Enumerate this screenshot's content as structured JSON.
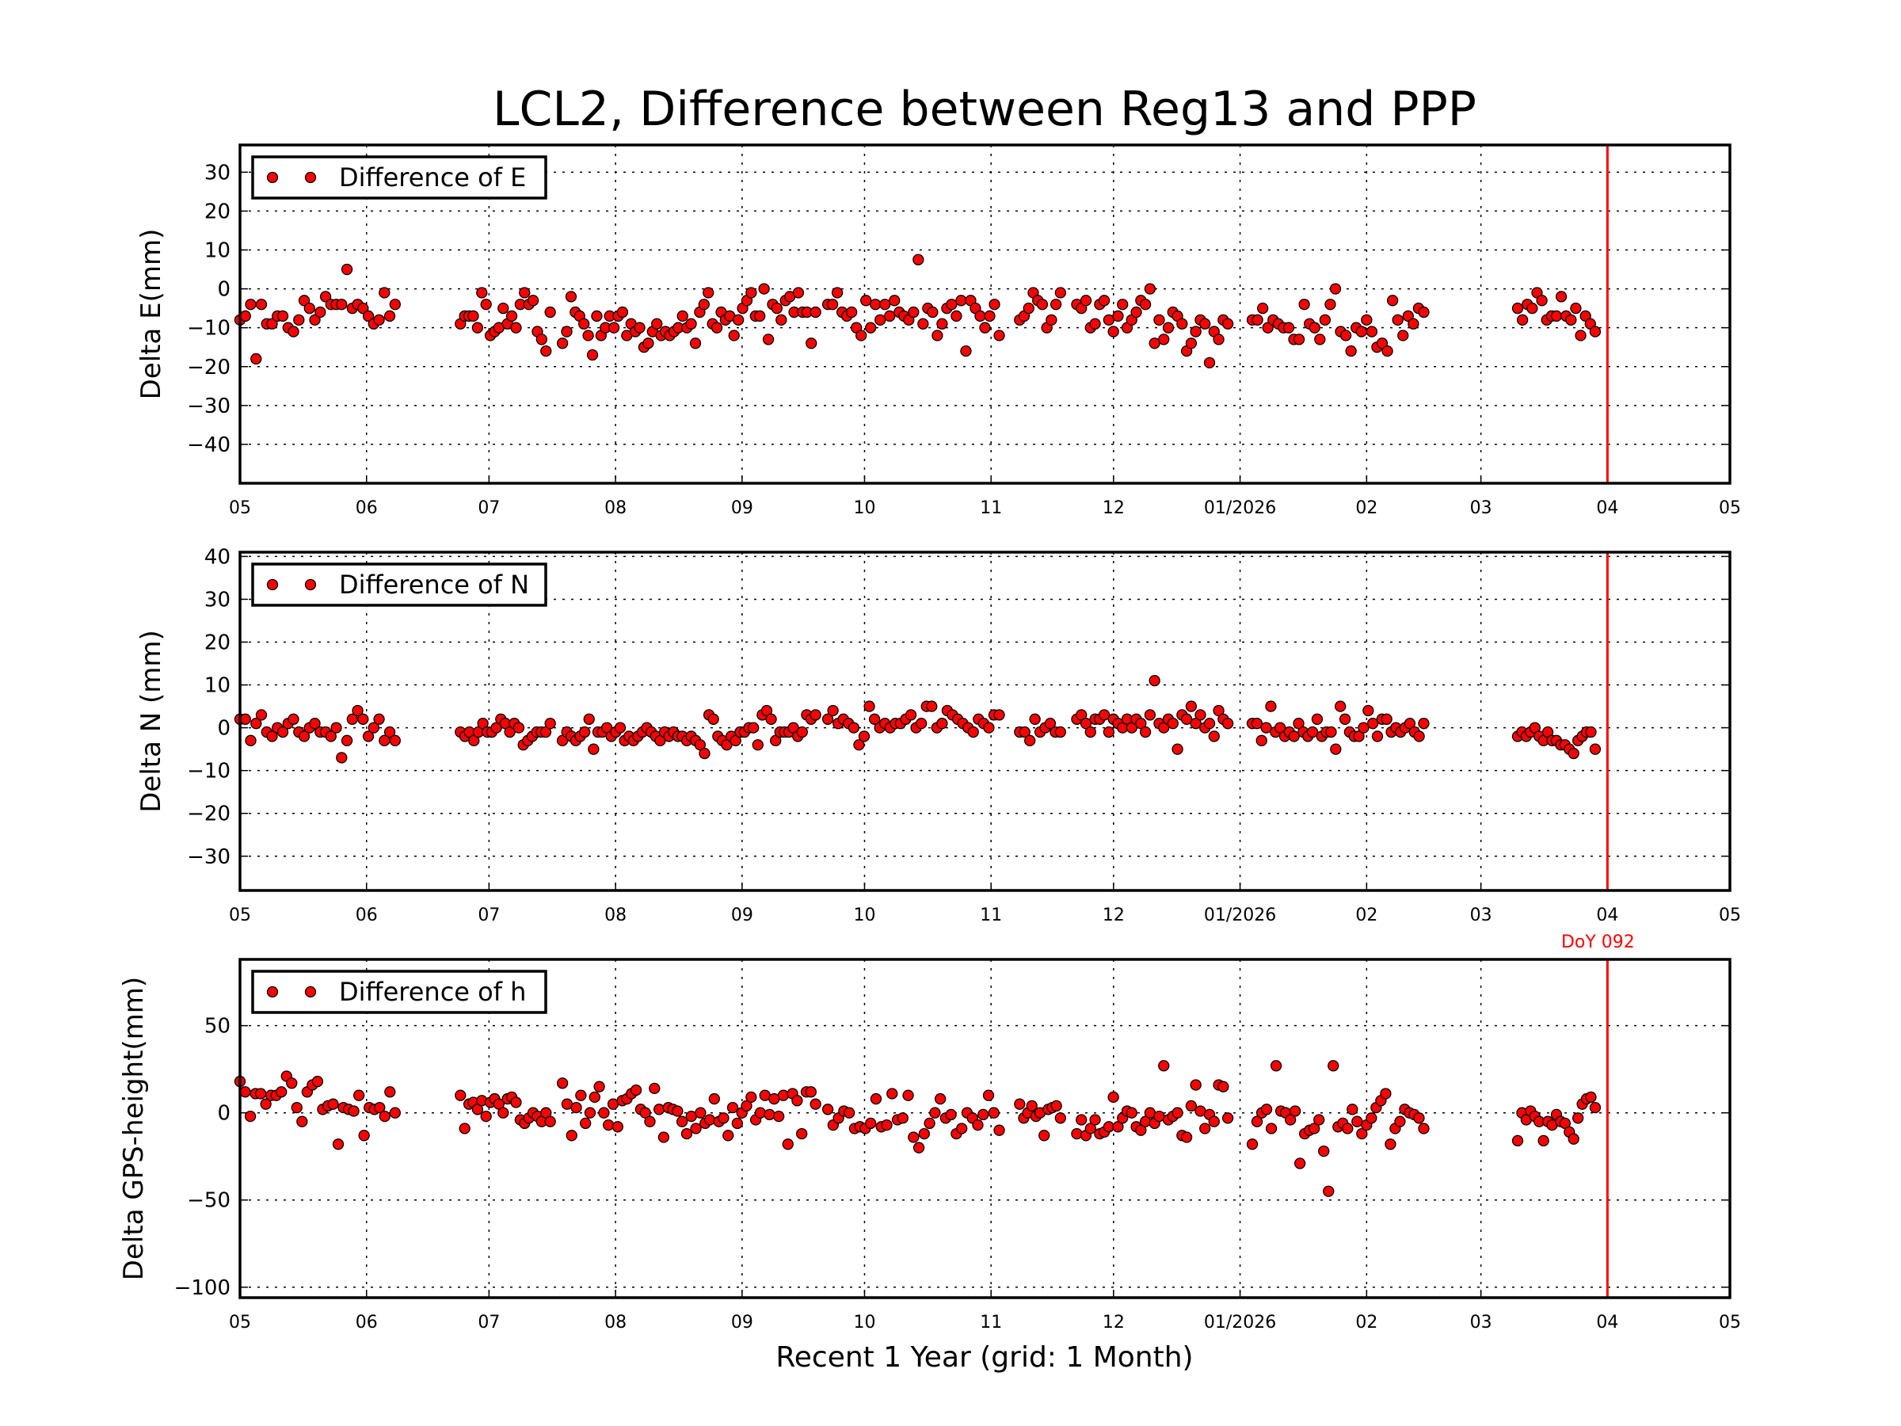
{
  "chart_data": {
    "title": "LCL2, Difference between Reg13 and PPP",
    "xlabel": "Recent 1 Year (grid: 1 Month)",
    "xlim": [
      "2025-05-01",
      "2026-05-01"
    ],
    "x_ticks": [
      {
        "date": "2025-05-01",
        "label": "05"
      },
      {
        "date": "2025-06-01",
        "label": "06"
      },
      {
        "date": "2025-07-01",
        "label": "07"
      },
      {
        "date": "2025-08-01",
        "label": "08"
      },
      {
        "date": "2025-09-01",
        "label": "09"
      },
      {
        "date": "2025-10-01",
        "label": "10"
      },
      {
        "date": "2025-11-01",
        "label": "11"
      },
      {
        "date": "2025-12-01",
        "label": "12"
      },
      {
        "date": "2026-01-01",
        "label": "01/2026"
      },
      {
        "date": "2026-02-01",
        "label": "02"
      },
      {
        "date": "2026-03-01",
        "label": "03"
      },
      {
        "date": "2026-04-01",
        "label": "04"
      },
      {
        "date": "2026-05-01",
        "label": "05"
      }
    ],
    "grid": true,
    "marker_color": "#ff0000",
    "marker_edge_color": "#000000",
    "reference_line": {
      "date": "2026-04-01",
      "color": "#ff0000",
      "label": "DoY 092"
    },
    "panels": [
      {
        "type": "scatter",
        "ylabel": "Delta E(mm)",
        "legend": "Difference of E",
        "legend_position": "top-left",
        "ylim": [
          -50,
          37
        ],
        "yticks": [
          30,
          20,
          10,
          0,
          -10,
          -20,
          -30,
          -40
        ],
        "segments": [
          {
            "start": "2025-05-01",
            "end": "2025-06-08",
            "values": [
              -8,
              -7,
              -4,
              -18,
              -4,
              -9,
              -9,
              -7,
              -7,
              -10,
              -11,
              -8,
              -3,
              -5,
              -8,
              -6,
              -2,
              -4,
              -4,
              -4,
              5,
              -5,
              -4,
              -5,
              -7,
              -9,
              -8,
              -1,
              -7,
              -4
            ]
          },
          {
            "start": "2025-06-24",
            "end": "2025-07-16",
            "values": [
              -9,
              -7,
              -7,
              -7,
              -10,
              -1,
              -4,
              -12,
              -11,
              -10,
              -5,
              -9,
              -7,
              -10,
              -4,
              -1,
              -4,
              -3,
              -11,
              -13,
              -16,
              -6
            ]
          },
          {
            "start": "2025-07-19",
            "end": "2025-09-19",
            "values": [
              -14,
              -11,
              -2,
              -6,
              -7,
              -9,
              -12,
              -17,
              -7,
              -12,
              -10,
              -7,
              -10,
              -7,
              -6,
              -12,
              -9,
              -11,
              -10,
              -15,
              -14,
              -11,
              -9,
              -12,
              -11,
              -12,
              -11,
              -10,
              -7,
              -10,
              -9,
              -14,
              -6,
              -4,
              -1,
              -9,
              -10,
              -6,
              -8,
              -7,
              -12,
              -8,
              -5,
              -3,
              -1,
              -7,
              -7,
              0,
              -13,
              -4,
              -5,
              -8,
              -3,
              -2,
              -6,
              -1,
              -6,
              -6,
              -14,
              -6
            ]
          },
          {
            "start": "2025-09-22",
            "end": "2025-11-03",
            "values": [
              -4,
              -4,
              -1,
              -6,
              -7,
              -6,
              -10,
              -12,
              -3,
              -10,
              -4,
              -8,
              -4,
              -7,
              -3,
              -6,
              -7,
              -8,
              -6,
              7.5,
              -9,
              -5,
              -6,
              -12,
              -9,
              -5,
              -4,
              -7,
              -3,
              -16,
              -3,
              -5,
              -7,
              -10,
              -7,
              -4,
              -12
            ]
          },
          {
            "start": "2025-11-08",
            "end": "2025-11-18",
            "values": [
              -8,
              -7,
              -5,
              -1,
              -3,
              -4,
              -10,
              -8,
              -4,
              -1
            ]
          },
          {
            "start": "2025-11-22",
            "end": "2025-12-29",
            "values": [
              -4,
              -5,
              -3,
              -10,
              -9,
              -4,
              -3,
              -8,
              -11,
              -7,
              -4,
              -10,
              -8,
              -6,
              -3,
              -4,
              0,
              -14,
              -8,
              -13,
              -10,
              -6,
              -7,
              -9,
              -16,
              -14,
              -11,
              -8,
              -9,
              -19,
              -11,
              -13,
              -8,
              -9
            ]
          },
          {
            "start": "2026-01-04",
            "end": "2026-02-15",
            "values": [
              -8,
              -8,
              -5,
              -10,
              -8,
              -9,
              -10,
              -10,
              -13,
              -13,
              -4,
              -9,
              -10,
              -13,
              -8,
              -4,
              0,
              -11,
              -12,
              -16,
              -10,
              -11,
              -8,
              -11,
              -15,
              -14,
              -16,
              -3,
              -8,
              -12,
              -7,
              -9,
              -5,
              -6
            ]
          },
          {
            "start": "2026-03-10",
            "end": "2026-03-29",
            "values": [
              -5,
              -8,
              -4,
              -5,
              -1,
              -3,
              -8,
              -7,
              -7,
              -2,
              -7,
              -8,
              -5,
              -12,
              -7,
              -9,
              -11
            ]
          }
        ]
      },
      {
        "type": "scatter",
        "ylabel": "Delta N (mm)",
        "legend": "Difference of N",
        "legend_position": "top-left",
        "ylim": [
          -38,
          41
        ],
        "yticks": [
          40,
          30,
          20,
          10,
          0,
          -10,
          -20,
          -30
        ],
        "segments": [
          {
            "start": "2025-05-01",
            "end": "2025-06-08",
            "values": [
              2,
              2,
              -3,
              1,
              3,
              -1,
              -2,
              0,
              -1,
              1,
              2,
              -1,
              -2,
              0,
              1,
              -1,
              -1,
              -2,
              0,
              -7,
              -3,
              2,
              4,
              2,
              -2,
              0,
              2,
              -3,
              -1,
              -3
            ]
          },
          {
            "start": "2025-06-24",
            "end": "2025-07-16",
            "values": [
              -1,
              -2,
              -1,
              -3,
              -1,
              1,
              -1,
              -1,
              0,
              2,
              1,
              -1,
              1,
              0,
              -4,
              -3,
              -2,
              -1,
              -1,
              -1,
              1
            ]
          },
          {
            "start": "2025-07-19",
            "end": "2025-09-19",
            "values": [
              -3,
              -1,
              -2,
              -3,
              -2,
              -1,
              2,
              -5,
              -1,
              -1,
              0,
              -2,
              -1,
              0,
              -3,
              -2,
              -3,
              -2,
              -1,
              0,
              -1,
              -2,
              -3,
              -1,
              -2,
              -1,
              -2,
              -2,
              -3,
              -2,
              -3,
              -4,
              -6,
              3,
              2,
              -2,
              -3,
              -4,
              -2,
              -3,
              -1,
              -1,
              0,
              0,
              -4,
              3,
              4,
              2,
              -3,
              -1,
              -1,
              -1,
              0,
              -2,
              -1,
              3,
              2,
              3
            ]
          },
          {
            "start": "2025-09-22",
            "end": "2025-11-03",
            "values": [
              2,
              4,
              1,
              2,
              1,
              0,
              -4,
              -2,
              5,
              2,
              0,
              1,
              0,
              1,
              1,
              2,
              3,
              0,
              1,
              5,
              5,
              0,
              1,
              4,
              3,
              2,
              1,
              0,
              -1,
              2,
              1,
              0,
              3,
              3
            ]
          },
          {
            "start": "2025-11-08",
            "end": "2025-11-18",
            "values": [
              -1,
              -1,
              -3,
              2,
              -1,
              0,
              1,
              -1,
              -1
            ]
          },
          {
            "start": "2025-11-22",
            "end": "2025-12-29",
            "values": [
              2,
              3,
              1,
              -1,
              2,
              2,
              3,
              -1,
              2,
              1,
              0,
              2,
              0,
              2,
              1,
              -1,
              3,
              11,
              1,
              0,
              2,
              1,
              -5,
              3,
              2,
              5,
              1,
              3,
              0,
              1,
              -2,
              4,
              2,
              1
            ]
          },
          {
            "start": "2026-01-04",
            "end": "2026-02-15",
            "values": [
              1,
              1,
              -3,
              0,
              5,
              -1,
              0,
              -2,
              -1,
              -2,
              1,
              -1,
              -2,
              -1,
              2,
              -2,
              -1,
              -1,
              -5,
              5,
              2,
              -1,
              -2,
              -2,
              0,
              4,
              1,
              -2,
              2,
              2,
              -1,
              0,
              -1,
              0,
              1,
              -1,
              -2,
              1
            ]
          },
          {
            "start": "2026-03-10",
            "end": "2026-03-29",
            "values": [
              -2,
              -1,
              -2,
              -1,
              0,
              -2,
              -3,
              -1,
              -3,
              -3,
              -4,
              -4,
              -5,
              -6,
              -3,
              -2,
              -1,
              -1,
              -5
            ]
          }
        ]
      },
      {
        "type": "scatter",
        "ylabel": "Delta GPS-height(mm)",
        "legend": "Difference of h",
        "legend_position": "top-left",
        "ylim": [
          -106,
          88
        ],
        "yticks": [
          50,
          0,
          -50,
          -100
        ],
        "segments": [
          {
            "start": "2025-05-01",
            "end": "2025-06-08",
            "values": [
              18,
              12,
              -2,
              11,
              11,
              5,
              10,
              10,
              12,
              21,
              17,
              3,
              -5,
              12,
              16,
              18,
              2,
              4,
              5,
              -18,
              3,
              2,
              1,
              10,
              -13,
              3,
              2,
              3,
              -2,
              12,
              0
            ]
          },
          {
            "start": "2025-06-24",
            "end": "2025-07-16",
            "values": [
              10,
              -9,
              5,
              6,
              2,
              7,
              -2,
              6,
              8,
              5,
              0,
              8,
              9,
              6,
              -4,
              -6,
              -3,
              0,
              -2,
              -5,
              0,
              -5
            ]
          },
          {
            "start": "2025-07-19",
            "end": "2025-09-19",
            "values": [
              17,
              5,
              -13,
              3,
              10,
              -6,
              0,
              9,
              15,
              0,
              -7,
              5,
              -8,
              7,
              8,
              11,
              13,
              2,
              0,
              -5,
              14,
              2,
              -14,
              3,
              2,
              1,
              -5,
              -12,
              -2,
              -9,
              0,
              -6,
              -4,
              8,
              -5,
              -3,
              -13,
              3,
              -6,
              0,
              4,
              9,
              -4,
              0,
              10,
              -1,
              8,
              -2,
              10,
              -18,
              11,
              7,
              -12,
              12,
              12,
              5
            ]
          },
          {
            "start": "2025-09-22",
            "end": "2025-11-03",
            "values": [
              2,
              -7,
              -3,
              1,
              0,
              -9,
              -8,
              -9,
              -6,
              8,
              -8,
              -7,
              11,
              -4,
              -3,
              10,
              -14,
              -20,
              -12,
              -6,
              0,
              8,
              -3,
              -1,
              -12,
              -9,
              0,
              -3,
              -7,
              -1,
              10,
              0,
              -10
            ]
          },
          {
            "start": "2025-11-08",
            "end": "2025-11-18",
            "values": [
              5,
              -3,
              0,
              4,
              -2,
              0,
              -13,
              2,
              3,
              4,
              -3
            ]
          },
          {
            "start": "2025-11-22",
            "end": "2025-12-29",
            "values": [
              -12,
              -4,
              -13,
              -9,
              -4,
              -12,
              -11,
              -8,
              9,
              -8,
              -3,
              1,
              0,
              -8,
              -10,
              -5,
              0,
              -6,
              -2,
              27,
              -4,
              -2,
              0,
              -13,
              -14,
              4,
              16,
              1,
              -9,
              -1,
              -5,
              16,
              15,
              -3
            ]
          },
          {
            "start": "2026-01-04",
            "end": "2026-02-15",
            "values": [
              -18,
              -5,
              0,
              2,
              -9,
              27,
              1,
              0,
              -4,
              1,
              -29,
              -12,
              -10,
              -9,
              -4,
              -22,
              -45,
              27,
              -8,
              -6,
              -9,
              2,
              -5,
              -12,
              -7,
              -3,
              3,
              7,
              11,
              -18,
              -9,
              -5,
              2,
              0,
              -1,
              -3,
              -9
            ]
          },
          {
            "start": "2026-03-10",
            "end": "2026-03-29",
            "values": [
              -16,
              0,
              -4,
              1,
              -2,
              -5,
              -16,
              -5,
              -7,
              -1,
              -5,
              -6,
              -11,
              -15,
              -3,
              5,
              8,
              9,
              3
            ]
          }
        ]
      }
    ]
  }
}
